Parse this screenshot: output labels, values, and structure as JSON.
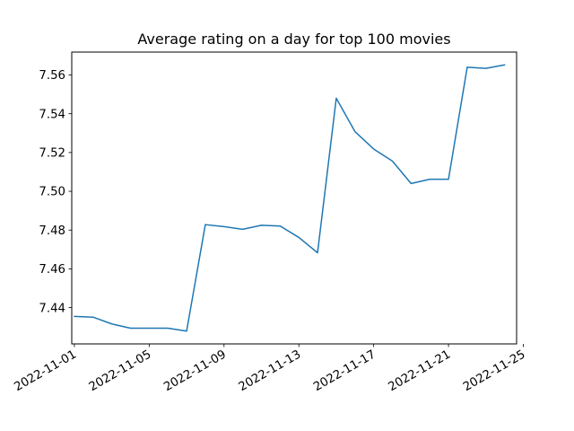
{
  "chart_data": {
    "type": "line",
    "title": "Average rating on a day for top 100 movies",
    "xlabel": "",
    "ylabel": "",
    "x_type": "date",
    "x": [
      "2022-11-01",
      "2022-11-02",
      "2022-11-03",
      "2022-11-04",
      "2022-11-05",
      "2022-11-06",
      "2022-11-07",
      "2022-11-08",
      "2022-11-09",
      "2022-11-10",
      "2022-11-11",
      "2022-11-12",
      "2022-11-13",
      "2022-11-14",
      "2022-11-15",
      "2022-11-16",
      "2022-11-17",
      "2022-11-18",
      "2022-11-19",
      "2022-11-20",
      "2022-11-21",
      "2022-11-22",
      "2022-11-23",
      "2022-11-24"
    ],
    "series": [
      {
        "values": [
          7.4355,
          7.4351,
          7.4316,
          7.4294,
          7.4294,
          7.4294,
          7.4279,
          7.4828,
          7.4818,
          7.4804,
          7.4825,
          7.4821,
          7.4762,
          7.4683,
          7.548,
          7.5308,
          7.5218,
          7.5156,
          7.504,
          7.5062,
          7.5062,
          7.564,
          7.5634,
          7.5652
        ],
        "color": "#1f77b4"
      }
    ],
    "xlim": [
      "2022-10-31T20:38",
      "2022-11-24T15:22"
    ],
    "ylim": [
      7.4213,
      7.5718
    ],
    "xticks": [
      "2022-11-01",
      "2022-11-05",
      "2022-11-09",
      "2022-11-13",
      "2022-11-17",
      "2022-11-21",
      "2022-11-25"
    ],
    "yticks": [
      7.44,
      7.46,
      7.48,
      7.5,
      7.52,
      7.54,
      7.56
    ],
    "ytick_labels": [
      "7.44",
      "7.46",
      "7.48",
      "7.50",
      "7.52",
      "7.54",
      "7.56"
    ],
    "grid": false,
    "legend": "none"
  }
}
